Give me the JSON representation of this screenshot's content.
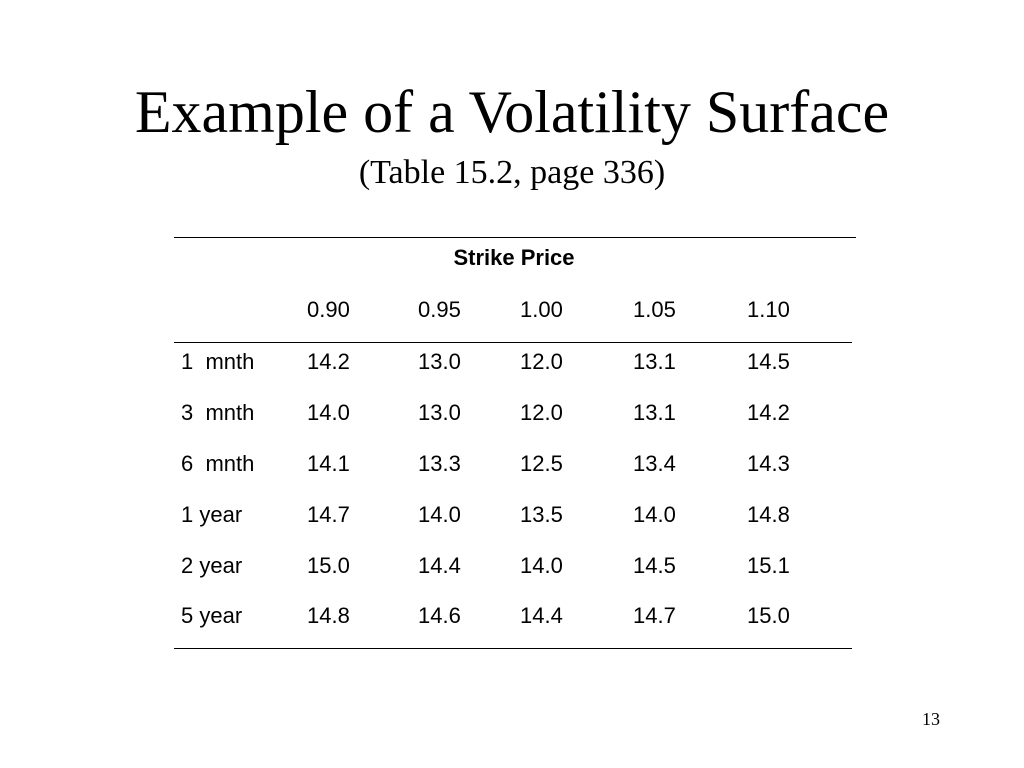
{
  "slide": {
    "title": "Example of a Volatility Surface",
    "subtitle": "(Table 15.2, page 336)",
    "page_number": "13"
  },
  "table": {
    "header": "Strike Price",
    "strikes": [
      "0.90",
      "0.95",
      "1.00",
      "1.05",
      "1.10"
    ],
    "rows": [
      {
        "label": "1  mnth",
        "values": [
          "14.2",
          "13.0",
          "12.0",
          "13.1",
          "14.5"
        ]
      },
      {
        "label": "3  mnth",
        "values": [
          "14.0",
          "13.0",
          "12.0",
          "13.1",
          "14.2"
        ]
      },
      {
        "label": "6  mnth",
        "values": [
          "14.1",
          "13.3",
          "12.5",
          "13.4",
          "14.3"
        ]
      },
      {
        "label": "1 year",
        "values": [
          "14.7",
          "14.0",
          "13.5",
          "14.0",
          "14.8"
        ]
      },
      {
        "label": "2 year",
        "values": [
          "15.0",
          "14.4",
          "14.0",
          "14.5",
          "15.1"
        ]
      },
      {
        "label": "5 year",
        "values": [
          "14.8",
          "14.6",
          "14.4",
          "14.7",
          "15.0"
        ]
      }
    ]
  }
}
